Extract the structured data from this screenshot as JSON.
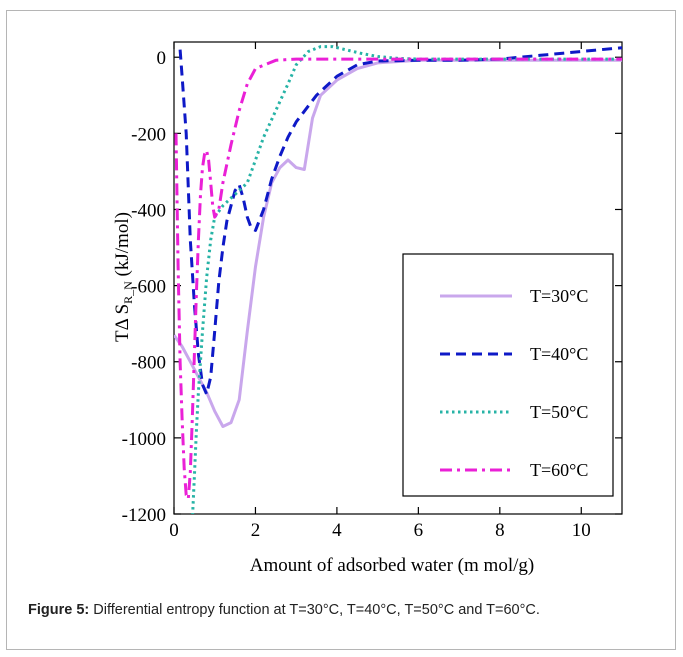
{
  "figure": {
    "caption_label": "Figure 5:",
    "caption_text": " Differential entropy function at T=30°C, T=40°C, T=50°C and T=60°C."
  },
  "chart_data": {
    "type": "line",
    "title": "",
    "xlabel": "Amount of adsorbed water (m mol/g)",
    "ylabel_main": "TΔ S",
    "ylabel_sub": "R_N",
    "ylabel_unit": " (kJ/mol)",
    "xlim": [
      0,
      11
    ],
    "ylim": [
      -1200,
      40
    ],
    "xticks": [
      0,
      2,
      4,
      6,
      8,
      10
    ],
    "yticks": [
      0,
      -200,
      -400,
      -600,
      -800,
      -1000,
      -1200
    ],
    "grid": false,
    "legend_position": "lower-right",
    "series": [
      {
        "name": "T=30°C",
        "color": "#c9a7ec",
        "dash": "solid",
        "x": [
          0.0,
          0.2,
          0.4,
          0.6,
          0.8,
          1.0,
          1.2,
          1.4,
          1.6,
          1.8,
          2.0,
          2.2,
          2.4,
          2.6,
          2.8,
          3.0,
          3.2,
          3.4,
          3.6,
          3.8,
          4.0,
          4.5,
          5.0,
          6.0,
          8.0,
          11.0
        ],
        "y": [
          -730,
          -760,
          -800,
          -840,
          -880,
          -930,
          -970,
          -960,
          -900,
          -720,
          -550,
          -420,
          -330,
          -290,
          -270,
          -290,
          -295,
          -160,
          -100,
          -80,
          -60,
          -30,
          -15,
          -8,
          -8,
          -8
        ]
      },
      {
        "name": "T=40°C",
        "color": "#0e19c7",
        "dash": "dashed",
        "x": [
          0.15,
          0.2,
          0.3,
          0.4,
          0.5,
          0.6,
          0.7,
          0.8,
          0.9,
          1.0,
          1.1,
          1.2,
          1.3,
          1.4,
          1.5,
          1.6,
          1.7,
          1.8,
          1.9,
          2.0,
          2.2,
          2.4,
          2.6,
          2.8,
          3.0,
          3.5,
          4.0,
          4.5,
          5.0,
          6.0,
          7.0,
          8.0,
          9.0,
          10.0,
          11.0
        ],
        "y": [
          20,
          -50,
          -200,
          -480,
          -650,
          -780,
          -860,
          -885,
          -840,
          -720,
          -590,
          -500,
          -430,
          -390,
          -350,
          -335,
          -370,
          -420,
          -450,
          -455,
          -400,
          -320,
          -260,
          -210,
          -170,
          -100,
          -50,
          -20,
          -10,
          -8,
          -8,
          -5,
          5,
          15,
          25
        ]
      },
      {
        "name": "T=50°C",
        "color": "#27b3a6",
        "dash": "dotted",
        "x": [
          0.45,
          0.5,
          0.55,
          0.6,
          0.7,
          0.8,
          0.9,
          1.0,
          1.2,
          1.4,
          1.6,
          1.8,
          2.0,
          2.2,
          2.5,
          2.8,
          3.0,
          3.3,
          3.6,
          3.9,
          4.2,
          4.6,
          5.0,
          5.5,
          6.0,
          7.0,
          8.0,
          11.0
        ],
        "y": [
          -1220,
          -1100,
          -980,
          -880,
          -720,
          -580,
          -480,
          -420,
          -390,
          -370,
          -350,
          -330,
          -270,
          -210,
          -140,
          -70,
          -20,
          15,
          28,
          28,
          20,
          10,
          2,
          -3,
          -5,
          -5,
          -5,
          -5
        ]
      },
      {
        "name": "T=60°C",
        "color": "#ea20d6",
        "dash": "dashdot",
        "x": [
          0.05,
          0.1,
          0.15,
          0.2,
          0.25,
          0.3,
          0.35,
          0.4,
          0.45,
          0.5,
          0.55,
          0.6,
          0.65,
          0.7,
          0.75,
          0.8,
          0.85,
          0.9,
          0.95,
          1.0,
          1.1,
          1.2,
          1.4,
          1.6,
          1.8,
          2.0,
          2.5,
          3.0,
          3.5,
          4.0,
          5.0,
          6.0,
          8.0,
          11.0
        ],
        "y": [
          -200,
          -550,
          -800,
          -950,
          -1080,
          -1150,
          -1160,
          -1090,
          -950,
          -780,
          -620,
          -480,
          -360,
          -290,
          -255,
          -245,
          -270,
          -330,
          -390,
          -420,
          -400,
          -330,
          -230,
          -140,
          -70,
          -30,
          -8,
          -5,
          -5,
          -5,
          -5,
          -5,
          -5,
          -5
        ]
      }
    ]
  }
}
